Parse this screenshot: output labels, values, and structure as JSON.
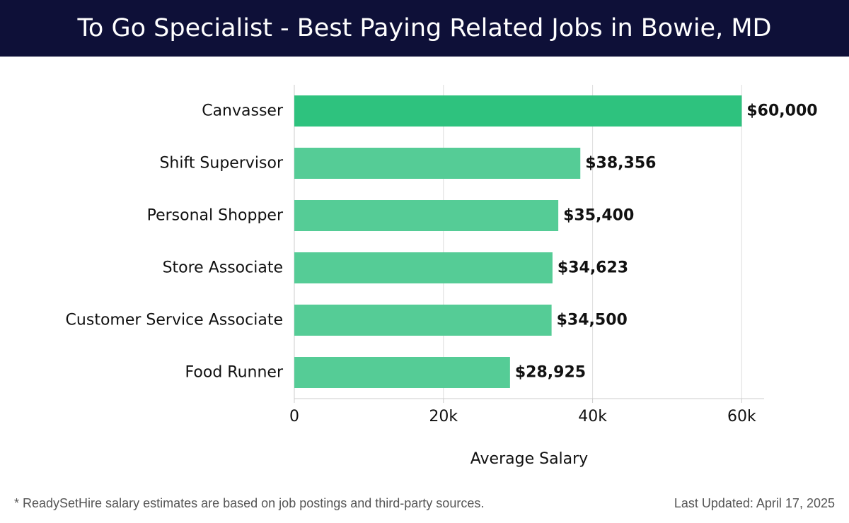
{
  "header": {
    "title": "To Go Specialist - Best Paying Related Jobs in Bowie, MD"
  },
  "chart_data": {
    "type": "bar",
    "orientation": "horizontal",
    "title": "To Go Specialist - Best Paying Related Jobs in Bowie, MD",
    "xlabel": "Average Salary",
    "ylabel": "",
    "categories": [
      "Canvasser",
      "Shift Supervisor",
      "Personal Shopper",
      "Store Associate",
      "Customer Service Associate",
      "Food Runner"
    ],
    "values": [
      60000,
      38356,
      35400,
      34623,
      34500,
      28925
    ],
    "value_labels": [
      "$60,000",
      "$38,356",
      "$35,400",
      "$34,623",
      "$34,500",
      "$28,925"
    ],
    "xlim": [
      0,
      63000
    ],
    "xticks": [
      0,
      20000,
      40000,
      60000
    ],
    "xtick_labels": [
      "0",
      "20k",
      "40k",
      "60k"
    ],
    "grid": true,
    "colors": {
      "highlight": "#2ec27e",
      "bar": "#55cc96",
      "grid": "#dddddd"
    }
  },
  "footer": {
    "note": "* ReadySetHire salary estimates are based on job postings and third-party sources.",
    "updated": "Last Updated: April 17, 2025"
  }
}
